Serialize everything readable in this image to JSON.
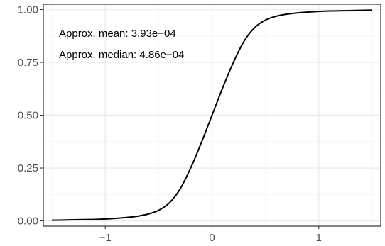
{
  "chart_data": {
    "type": "line",
    "title": "",
    "xlabel": "",
    "ylabel": "",
    "xlim": [
      -1.58,
      1.58
    ],
    "ylim": [
      -0.025,
      1.025
    ],
    "x_ticks": [
      -1,
      0,
      1
    ],
    "x_tick_labels": [
      "−1",
      "0",
      "1"
    ],
    "y_ticks": [
      0.0,
      0.25,
      0.5,
      0.75,
      1.0
    ],
    "y_tick_labels": [
      "0.00",
      "0.25",
      "0.50",
      "0.75",
      "1.00"
    ],
    "grid": true,
    "panel_border": true,
    "annotations": [
      "Approx. mean: 3.93e−04",
      "Approx. median: 4.86e−04"
    ],
    "series": [
      {
        "color": "#000000",
        "x": [
          -1.5,
          -1.4,
          -1.3,
          -1.2,
          -1.1,
          -1.0,
          -0.9,
          -0.8,
          -0.7,
          -0.6,
          -0.5,
          -0.4,
          -0.3,
          -0.2,
          -0.1,
          0.0,
          0.1,
          0.2,
          0.3,
          0.4,
          0.5,
          0.6,
          0.7,
          0.8,
          0.9,
          1.0,
          1.1,
          1.2,
          1.3,
          1.4,
          1.5
        ],
        "y": [
          0.003,
          0.004,
          0.005,
          0.006,
          0.007,
          0.009,
          0.012,
          0.016,
          0.022,
          0.032,
          0.05,
          0.085,
          0.15,
          0.25,
          0.37,
          0.5,
          0.63,
          0.75,
          0.85,
          0.915,
          0.95,
          0.968,
          0.978,
          0.984,
          0.988,
          0.991,
          0.993,
          0.994,
          0.995,
          0.996,
          0.997
        ]
      }
    ]
  }
}
